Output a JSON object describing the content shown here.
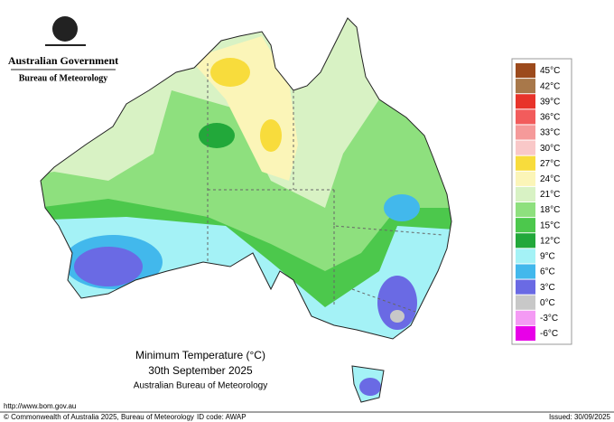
{
  "header": {
    "government": "Australian Government",
    "agency": "Bureau of Meteorology"
  },
  "map": {
    "title": "Minimum Temperature (°C)",
    "date": "30th September 2025",
    "source": "Australian Bureau of Meteorology"
  },
  "legend": {
    "items": [
      {
        "label": "45°C",
        "color": "#9c4a1c"
      },
      {
        "label": "42°C",
        "color": "#a8784a"
      },
      {
        "label": "39°C",
        "color": "#e8332a"
      },
      {
        "label": "36°C",
        "color": "#f25c5c"
      },
      {
        "label": "33°C",
        "color": "#f59a9a"
      },
      {
        "label": "30°C",
        "color": "#f9c8c8"
      },
      {
        "label": "27°C",
        "color": "#f8dc3c"
      },
      {
        "label": "24°C",
        "color": "#fbf5b8"
      },
      {
        "label": "21°C",
        "color": "#d8f2c4"
      },
      {
        "label": "18°C",
        "color": "#8ee07e"
      },
      {
        "label": "15°C",
        "color": "#4cc84c"
      },
      {
        "label": "12°C",
        "color": "#22a83a"
      },
      {
        "label": "9°C",
        "color": "#a4f2f6"
      },
      {
        "label": "6°C",
        "color": "#42b8ec"
      },
      {
        "label": "3°C",
        "color": "#6a6ae4"
      },
      {
        "label": "0°C",
        "color": "#c8c8c8"
      },
      {
        "label": "-3°C",
        "color": "#f49af4"
      },
      {
        "label": "-6°C",
        "color": "#e800e8"
      }
    ]
  },
  "footer": {
    "url": "http://www.bom.gov.au",
    "copyright": "© Commonwealth of Australia 2025, Bureau of Meteorology",
    "id_code": "ID code: AWAP",
    "issued": "Issued: 30/09/2025"
  }
}
